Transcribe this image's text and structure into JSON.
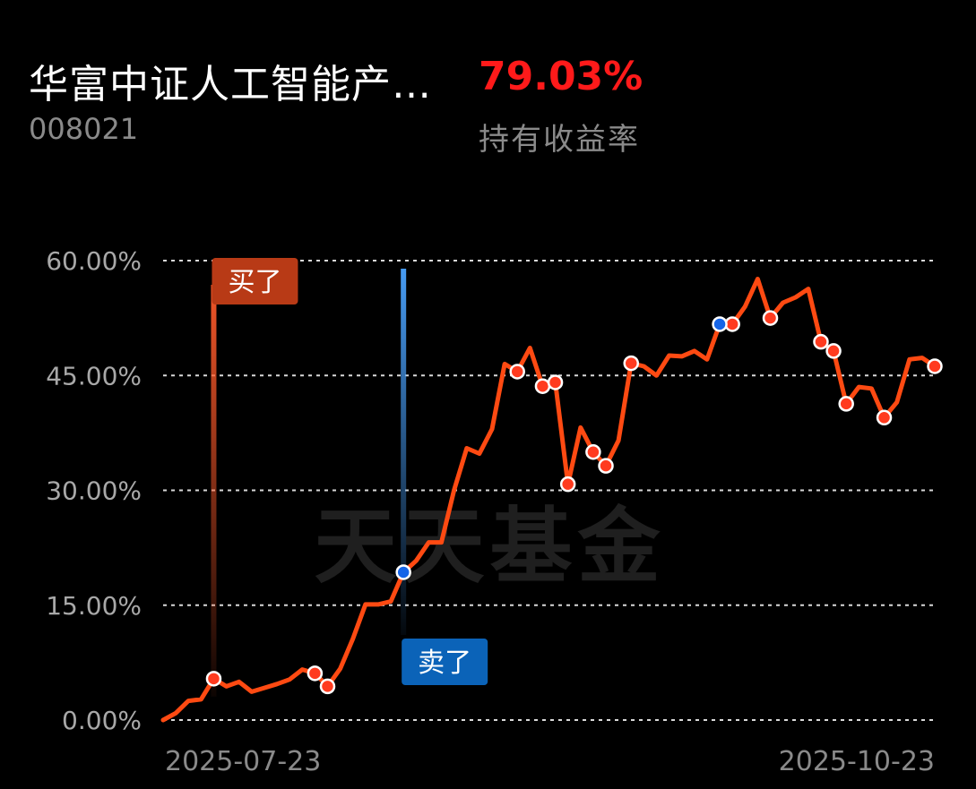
{
  "header": {
    "fund_name": "华富中证人工智能产…",
    "fund_code": "008021",
    "return_value": "79.03%",
    "return_label": "持有收益率"
  },
  "watermark": "天天基金",
  "colors": {
    "background": "#000000",
    "line": "#ff4a12",
    "return_value": "#ff1a1a",
    "buy_marker": "#b83a16",
    "sell_marker": "#0b63b8",
    "buy_dot": "#ff3b1f",
    "sell_dot": "#1565e8",
    "grid": "#ffffff"
  },
  "chart_data": {
    "type": "line",
    "title": "",
    "xlabel": "",
    "ylabel": "",
    "ylim": [
      0,
      60
    ],
    "yticks": [
      0,
      15,
      30,
      45,
      60
    ],
    "ytick_labels": [
      "0.00%",
      "15.00%",
      "30.00%",
      "45.00%",
      "60.00%"
    ],
    "x_start_label": "2025-07-23",
    "x_end_label": "2025-10-23",
    "grid": "horizontal dotted",
    "series": [
      {
        "values": [
          0.0,
          0.9,
          2.5,
          2.7,
          5.4,
          4.4,
          5.0,
          3.7,
          4.2,
          4.7,
          5.3,
          6.6,
          6.1,
          4.4,
          6.7,
          10.6,
          15.1,
          15.1,
          15.5,
          19.3,
          20.8,
          23.2,
          23.2,
          30.0,
          35.5,
          34.8,
          38.0,
          46.5,
          45.5,
          48.6,
          43.6,
          44.1,
          30.8,
          38.2,
          35.0,
          33.2,
          36.5,
          46.6,
          46.2,
          45.0,
          47.6,
          47.5,
          48.2,
          47.1,
          51.7,
          51.7,
          54.0,
          57.6,
          52.5,
          54.5,
          55.2,
          56.3,
          49.4,
          48.2,
          41.3,
          43.5,
          43.3,
          39.5,
          41.5,
          47.1,
          47.3,
          46.2
        ]
      }
    ],
    "markers": {
      "buy": [
        4,
        12,
        13,
        28,
        30,
        31,
        32,
        34,
        35,
        37,
        45,
        48,
        52,
        53,
        54,
        57,
        61
      ],
      "sell": [
        19,
        44
      ]
    },
    "flags": {
      "buy": {
        "label": "买了",
        "index": 4
      },
      "sell": {
        "label": "卖了",
        "index": 19
      }
    }
  }
}
